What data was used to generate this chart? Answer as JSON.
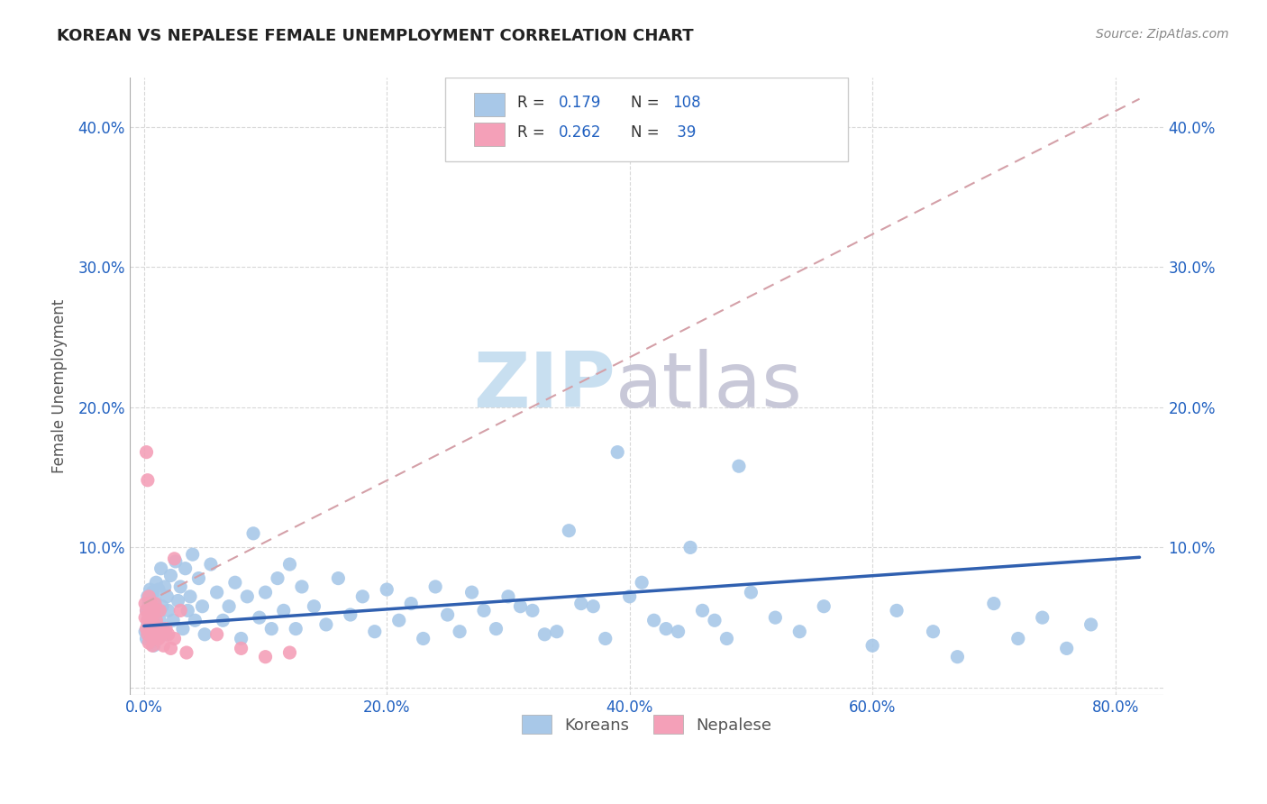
{
  "title": "KOREAN VS NEPALESE FEMALE UNEMPLOYMENT CORRELATION CHART",
  "source": "Source: ZipAtlas.com",
  "xlabel_ticks": [
    "0.0%",
    "20.0%",
    "40.0%",
    "60.0%",
    "80.0%"
  ],
  "ylabel_ticks_left": [
    "",
    "10.0%",
    "20.0%",
    "30.0%",
    "40.0%"
  ],
  "ylabel_ticks_right": [
    "",
    "10.0%",
    "20.0%",
    "30.0%",
    "40.0%"
  ],
  "xlabel_values": [
    0.0,
    0.2,
    0.4,
    0.6,
    0.8
  ],
  "ylabel_values": [
    0.0,
    0.1,
    0.2,
    0.3,
    0.4
  ],
  "xmin": -0.012,
  "xmax": 0.84,
  "ymin": -0.005,
  "ymax": 0.435,
  "korean_color": "#a8c8e8",
  "nepalese_color": "#f4a0b8",
  "korean_line_color": "#3060b0",
  "nepalese_line_color": "#e88090",
  "nepalese_trend_color": "#d4a0a8",
  "watermark_zip_color": "#c8dff0",
  "watermark_atlas_color": "#c8c8d8",
  "R_korean": 0.179,
  "N_korean": 108,
  "R_nepalese": 0.262,
  "N_nepalese": 39,
  "legend_label_korean": "Koreans",
  "legend_label_nepalese": "Nepalese",
  "ylabel": "Female Unemployment",
  "background_color": "#ffffff",
  "grid_color": "#d8d8d8",
  "title_color": "#222222",
  "source_color": "#888888",
  "stat_color": "#2060c0",
  "korean_x": [
    0.001,
    0.002,
    0.002,
    0.003,
    0.003,
    0.004,
    0.004,
    0.005,
    0.005,
    0.006,
    0.006,
    0.007,
    0.007,
    0.008,
    0.008,
    0.009,
    0.009,
    0.01,
    0.01,
    0.011,
    0.012,
    0.013,
    0.014,
    0.015,
    0.016,
    0.017,
    0.018,
    0.019,
    0.02,
    0.022,
    0.024,
    0.026,
    0.028,
    0.03,
    0.032,
    0.034,
    0.036,
    0.038,
    0.04,
    0.042,
    0.045,
    0.048,
    0.05,
    0.055,
    0.06,
    0.065,
    0.07,
    0.075,
    0.08,
    0.085,
    0.09,
    0.095,
    0.1,
    0.105,
    0.11,
    0.115,
    0.12,
    0.125,
    0.13,
    0.14,
    0.15,
    0.16,
    0.17,
    0.18,
    0.19,
    0.2,
    0.21,
    0.22,
    0.23,
    0.24,
    0.25,
    0.26,
    0.27,
    0.28,
    0.29,
    0.3,
    0.32,
    0.34,
    0.36,
    0.38,
    0.4,
    0.42,
    0.44,
    0.46,
    0.48,
    0.5,
    0.52,
    0.54,
    0.56,
    0.6,
    0.35,
    0.37,
    0.41,
    0.43,
    0.31,
    0.33,
    0.39,
    0.45,
    0.47,
    0.49,
    0.65,
    0.7,
    0.72,
    0.74,
    0.76,
    0.78,
    0.62,
    0.67
  ],
  "korean_y": [
    0.04,
    0.055,
    0.035,
    0.065,
    0.045,
    0.05,
    0.06,
    0.038,
    0.07,
    0.042,
    0.058,
    0.033,
    0.068,
    0.052,
    0.03,
    0.062,
    0.046,
    0.075,
    0.038,
    0.055,
    0.07,
    0.048,
    0.085,
    0.058,
    0.042,
    0.072,
    0.038,
    0.065,
    0.055,
    0.08,
    0.048,
    0.09,
    0.062,
    0.072,
    0.042,
    0.085,
    0.055,
    0.065,
    0.095,
    0.048,
    0.078,
    0.058,
    0.038,
    0.088,
    0.068,
    0.048,
    0.058,
    0.075,
    0.035,
    0.065,
    0.11,
    0.05,
    0.068,
    0.042,
    0.078,
    0.055,
    0.088,
    0.042,
    0.072,
    0.058,
    0.045,
    0.078,
    0.052,
    0.065,
    0.04,
    0.07,
    0.048,
    0.06,
    0.035,
    0.072,
    0.052,
    0.04,
    0.068,
    0.055,
    0.042,
    0.065,
    0.055,
    0.04,
    0.06,
    0.035,
    0.065,
    0.048,
    0.04,
    0.055,
    0.035,
    0.068,
    0.05,
    0.04,
    0.058,
    0.03,
    0.112,
    0.058,
    0.075,
    0.042,
    0.058,
    0.038,
    0.168,
    0.1,
    0.048,
    0.158,
    0.04,
    0.06,
    0.035,
    0.05,
    0.028,
    0.045,
    0.055,
    0.022
  ],
  "nepalese_x": [
    0.001,
    0.001,
    0.002,
    0.002,
    0.003,
    0.003,
    0.004,
    0.004,
    0.005,
    0.005,
    0.006,
    0.006,
    0.007,
    0.007,
    0.008,
    0.008,
    0.009,
    0.009,
    0.01,
    0.01,
    0.011,
    0.012,
    0.013,
    0.014,
    0.015,
    0.016,
    0.018,
    0.02,
    0.022,
    0.025,
    0.002,
    0.003,
    0.025,
    0.03,
    0.035,
    0.06,
    0.08,
    0.1,
    0.12
  ],
  "nepalese_y": [
    0.06,
    0.05,
    0.055,
    0.042,
    0.048,
    0.038,
    0.065,
    0.032,
    0.055,
    0.045,
    0.06,
    0.038,
    0.048,
    0.03,
    0.055,
    0.042,
    0.035,
    0.06,
    0.048,
    0.038,
    0.042,
    0.035,
    0.055,
    0.042,
    0.038,
    0.03,
    0.042,
    0.038,
    0.028,
    0.035,
    0.168,
    0.148,
    0.092,
    0.055,
    0.025,
    0.038,
    0.028,
    0.022,
    0.025
  ],
  "korean_trend_x": [
    0.0,
    0.82
  ],
  "korean_trend_y": [
    0.044,
    0.093
  ],
  "nepalese_trend_x": [
    0.0,
    0.82
  ],
  "nepalese_trend_y": [
    0.06,
    0.42
  ]
}
